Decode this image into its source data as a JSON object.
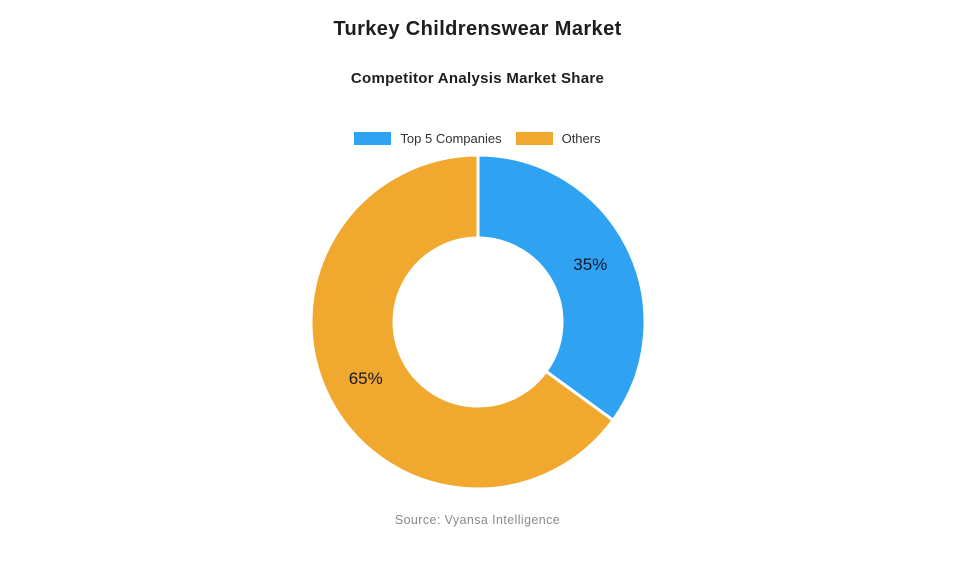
{
  "page": {
    "title": "Turkey Childrenswear Market",
    "subtitle": "Competitor Analysis Market Share",
    "source": "Source: Vyansa Intelligence"
  },
  "chart_data": {
    "type": "pie",
    "subtype": "donut",
    "title": "Turkey Childrenswear Market",
    "subtitle": "Competitor Analysis Market Share",
    "categories": [
      "Top 5 Companies",
      "Others"
    ],
    "values": [
      35,
      65
    ],
    "slice_labels": [
      "35%",
      "65%"
    ],
    "colors": [
      "#2FA3F2",
      "#F0A92E"
    ],
    "slice_border_color": "#FFFFFF",
    "slice_border_width": 3,
    "cutout_ratio": 0.5,
    "start_angle_deg": 0,
    "direction": "clockwise",
    "legend_position": "top",
    "source": "Source: Vyansa Intelligence"
  }
}
